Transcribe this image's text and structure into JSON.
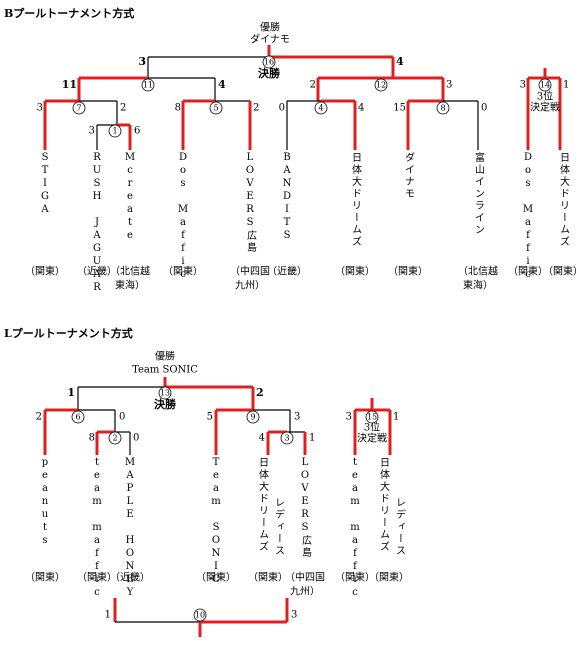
{
  "b_pool": {
    "title": "Bプールトーナメント方式",
    "champion_label": "優勝",
    "champion": "ダイナモ",
    "final_label": "決勝",
    "third_place_label": [
      "3位",
      "決定戦"
    ],
    "matches": [
      {
        "no": "16",
        "left": "3",
        "right": "4"
      },
      {
        "no": "11",
        "left": "11",
        "right": "4"
      },
      {
        "no": "7",
        "left": "3",
        "right": "2"
      },
      {
        "no": "1",
        "left": "3",
        "right": "6"
      },
      {
        "no": "5",
        "left": "8",
        "right": "2"
      },
      {
        "no": "12",
        "left": "2",
        "right": "3"
      },
      {
        "no": "4",
        "left": "0",
        "right": "4"
      },
      {
        "no": "8",
        "left": "15",
        "right": "0"
      },
      {
        "no": "14",
        "left": "3",
        "right": "1"
      }
    ],
    "teams": [
      {
        "name": [
          "STIGA"
        ],
        "region": [
          "（関東）"
        ]
      },
      {
        "name": [
          "RUSH JAGUAR"
        ],
        "region": [
          "（近畿）"
        ]
      },
      {
        "name": [
          "Mcreate"
        ],
        "region": [
          "（北信越",
          "東海）"
        ]
      },
      {
        "name": [
          "Dos Maffic"
        ],
        "region": [
          "（関東）"
        ]
      },
      {
        "name": [
          "LOVERS広島"
        ],
        "region": [
          "（中四国",
          "九州）"
        ]
      },
      {
        "name": [
          "BANDITS"
        ],
        "region": [
          "（近畿）"
        ]
      },
      {
        "name": [
          "日体大ドリームズ"
        ],
        "region": [
          "（関東）"
        ]
      },
      {
        "name": [
          "ダイナモ"
        ],
        "region": [
          "（関東）"
        ]
      },
      {
        "name": [
          "富山インライン"
        ],
        "region": [
          "（北信越",
          "東海）"
        ]
      },
      {
        "name": [
          "Dos Maffic"
        ],
        "region": [
          "（関東）"
        ]
      },
      {
        "name": [
          "日体大ドリームズ"
        ],
        "region": [
          "（関東）"
        ]
      }
    ]
  },
  "l_pool": {
    "title": "Lプールトーナメント方式",
    "champion_label": "優勝",
    "champion": "Team SONIC",
    "final_label": "決勝",
    "third_place_label": [
      "3位",
      "決定戦"
    ],
    "matches": [
      {
        "no": "13",
        "left": "1",
        "right": "2"
      },
      {
        "no": "6",
        "left": "2",
        "right": "0"
      },
      {
        "no": "2",
        "left": "8",
        "right": "0"
      },
      {
        "no": "9",
        "left": "5",
        "right": "3"
      },
      {
        "no": "3",
        "left": "4",
        "right": "1"
      },
      {
        "no": "15",
        "left": "3",
        "right": "1"
      },
      {
        "no": "10",
        "left": "1",
        "right": "3"
      }
    ],
    "teams": [
      {
        "name": [
          "peanuts"
        ],
        "region": [
          "（関東）"
        ]
      },
      {
        "name": [
          "team maffic"
        ],
        "region": [
          "（関東）"
        ]
      },
      {
        "name": [
          "MAPLE HONEY"
        ],
        "region": [
          "（近畿）"
        ]
      },
      {
        "name": [
          "Team SONIC"
        ],
        "region": [
          "（関東）"
        ]
      },
      {
        "name": [
          "日体大ドリームズ",
          "レディース"
        ],
        "region": [
          "（関東）"
        ]
      },
      {
        "name": [
          "LOVERS広島"
        ],
        "region": [
          "（中四国",
          "九州）"
        ]
      },
      {
        "name": [
          "team maffic"
        ],
        "region": [
          "（関東）"
        ]
      },
      {
        "name": [
          "日体大ドリームズ",
          "レディース"
        ],
        "region": [
          "（関東）"
        ]
      }
    ]
  }
}
